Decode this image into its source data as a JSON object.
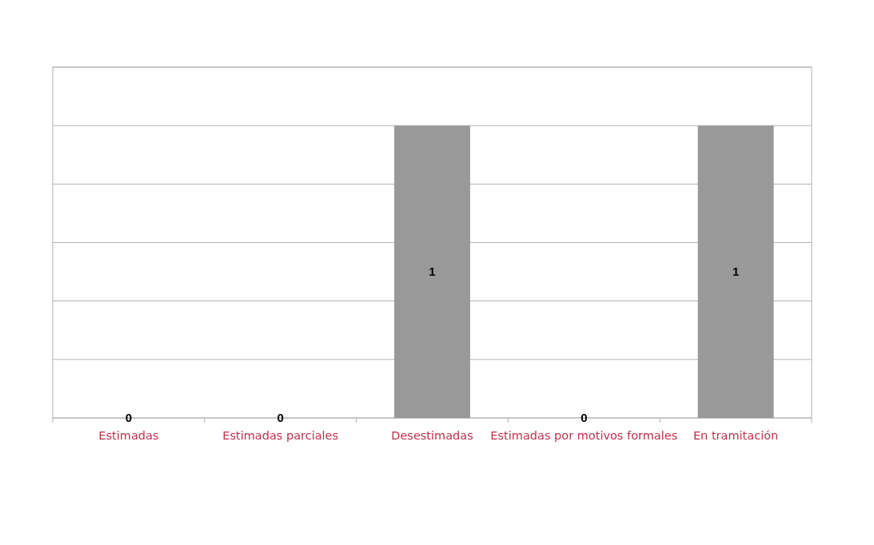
{
  "chart_data": {
    "type": "bar",
    "categories": [
      "Estimadas",
      "Estimadas parciales",
      "Desestimadas",
      "Estimadas por motivos formales",
      "En tramitación"
    ],
    "values": [
      0,
      0,
      1,
      0,
      1
    ],
    "color": "#999999",
    "ylim": [
      0,
      1.2
    ],
    "yticks": [
      {
        "value": 0,
        "label": null
      },
      {
        "value": 0.2,
        "label": null
      },
      {
        "value": 0.4,
        "label": null
      },
      {
        "value": 0.6,
        "label": null
      },
      {
        "value": 0.8,
        "label": null
      },
      {
        "value": 1,
        "label": null
      },
      {
        "value": 1.2,
        "label": null
      }
    ],
    "grid": "y",
    "tick_labels": "x",
    "data_labels": true
  }
}
